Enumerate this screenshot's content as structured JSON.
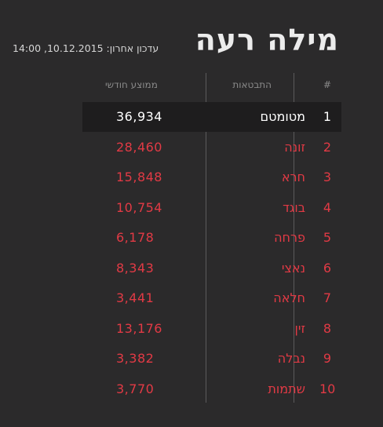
{
  "title": "מילה רעה",
  "updated": "עדכון אחרון: 10.12.2015, 14:00",
  "headers": {
    "rank": "#",
    "expressions": "התבטאות",
    "monthly_avg": "ממוצע חודשי"
  },
  "colors": {
    "highlight": "#ffffff",
    "accent": "#e23a45",
    "background": "#2b2a2b"
  },
  "rows": [
    {
      "rank": "1",
      "word": "מטומטם",
      "avg": "36,934"
    },
    {
      "rank": "2",
      "word": "זונה",
      "avg": "28,460"
    },
    {
      "rank": "3",
      "word": "חרא",
      "avg": "15,848"
    },
    {
      "rank": "4",
      "word": "בוגד",
      "avg": "10,754"
    },
    {
      "rank": "5",
      "word": "פרחה",
      "avg": "6,178"
    },
    {
      "rank": "6",
      "word": "נאצי",
      "avg": "8,343"
    },
    {
      "rank": "7",
      "word": "חלאה",
      "avg": "3,441"
    },
    {
      "rank": "8",
      "word": "זין",
      "avg": "13,176"
    },
    {
      "rank": "9",
      "word": "נבלה",
      "avg": "3,382"
    },
    {
      "rank": "10",
      "word": "שתמות",
      "avg": "3,770"
    }
  ]
}
